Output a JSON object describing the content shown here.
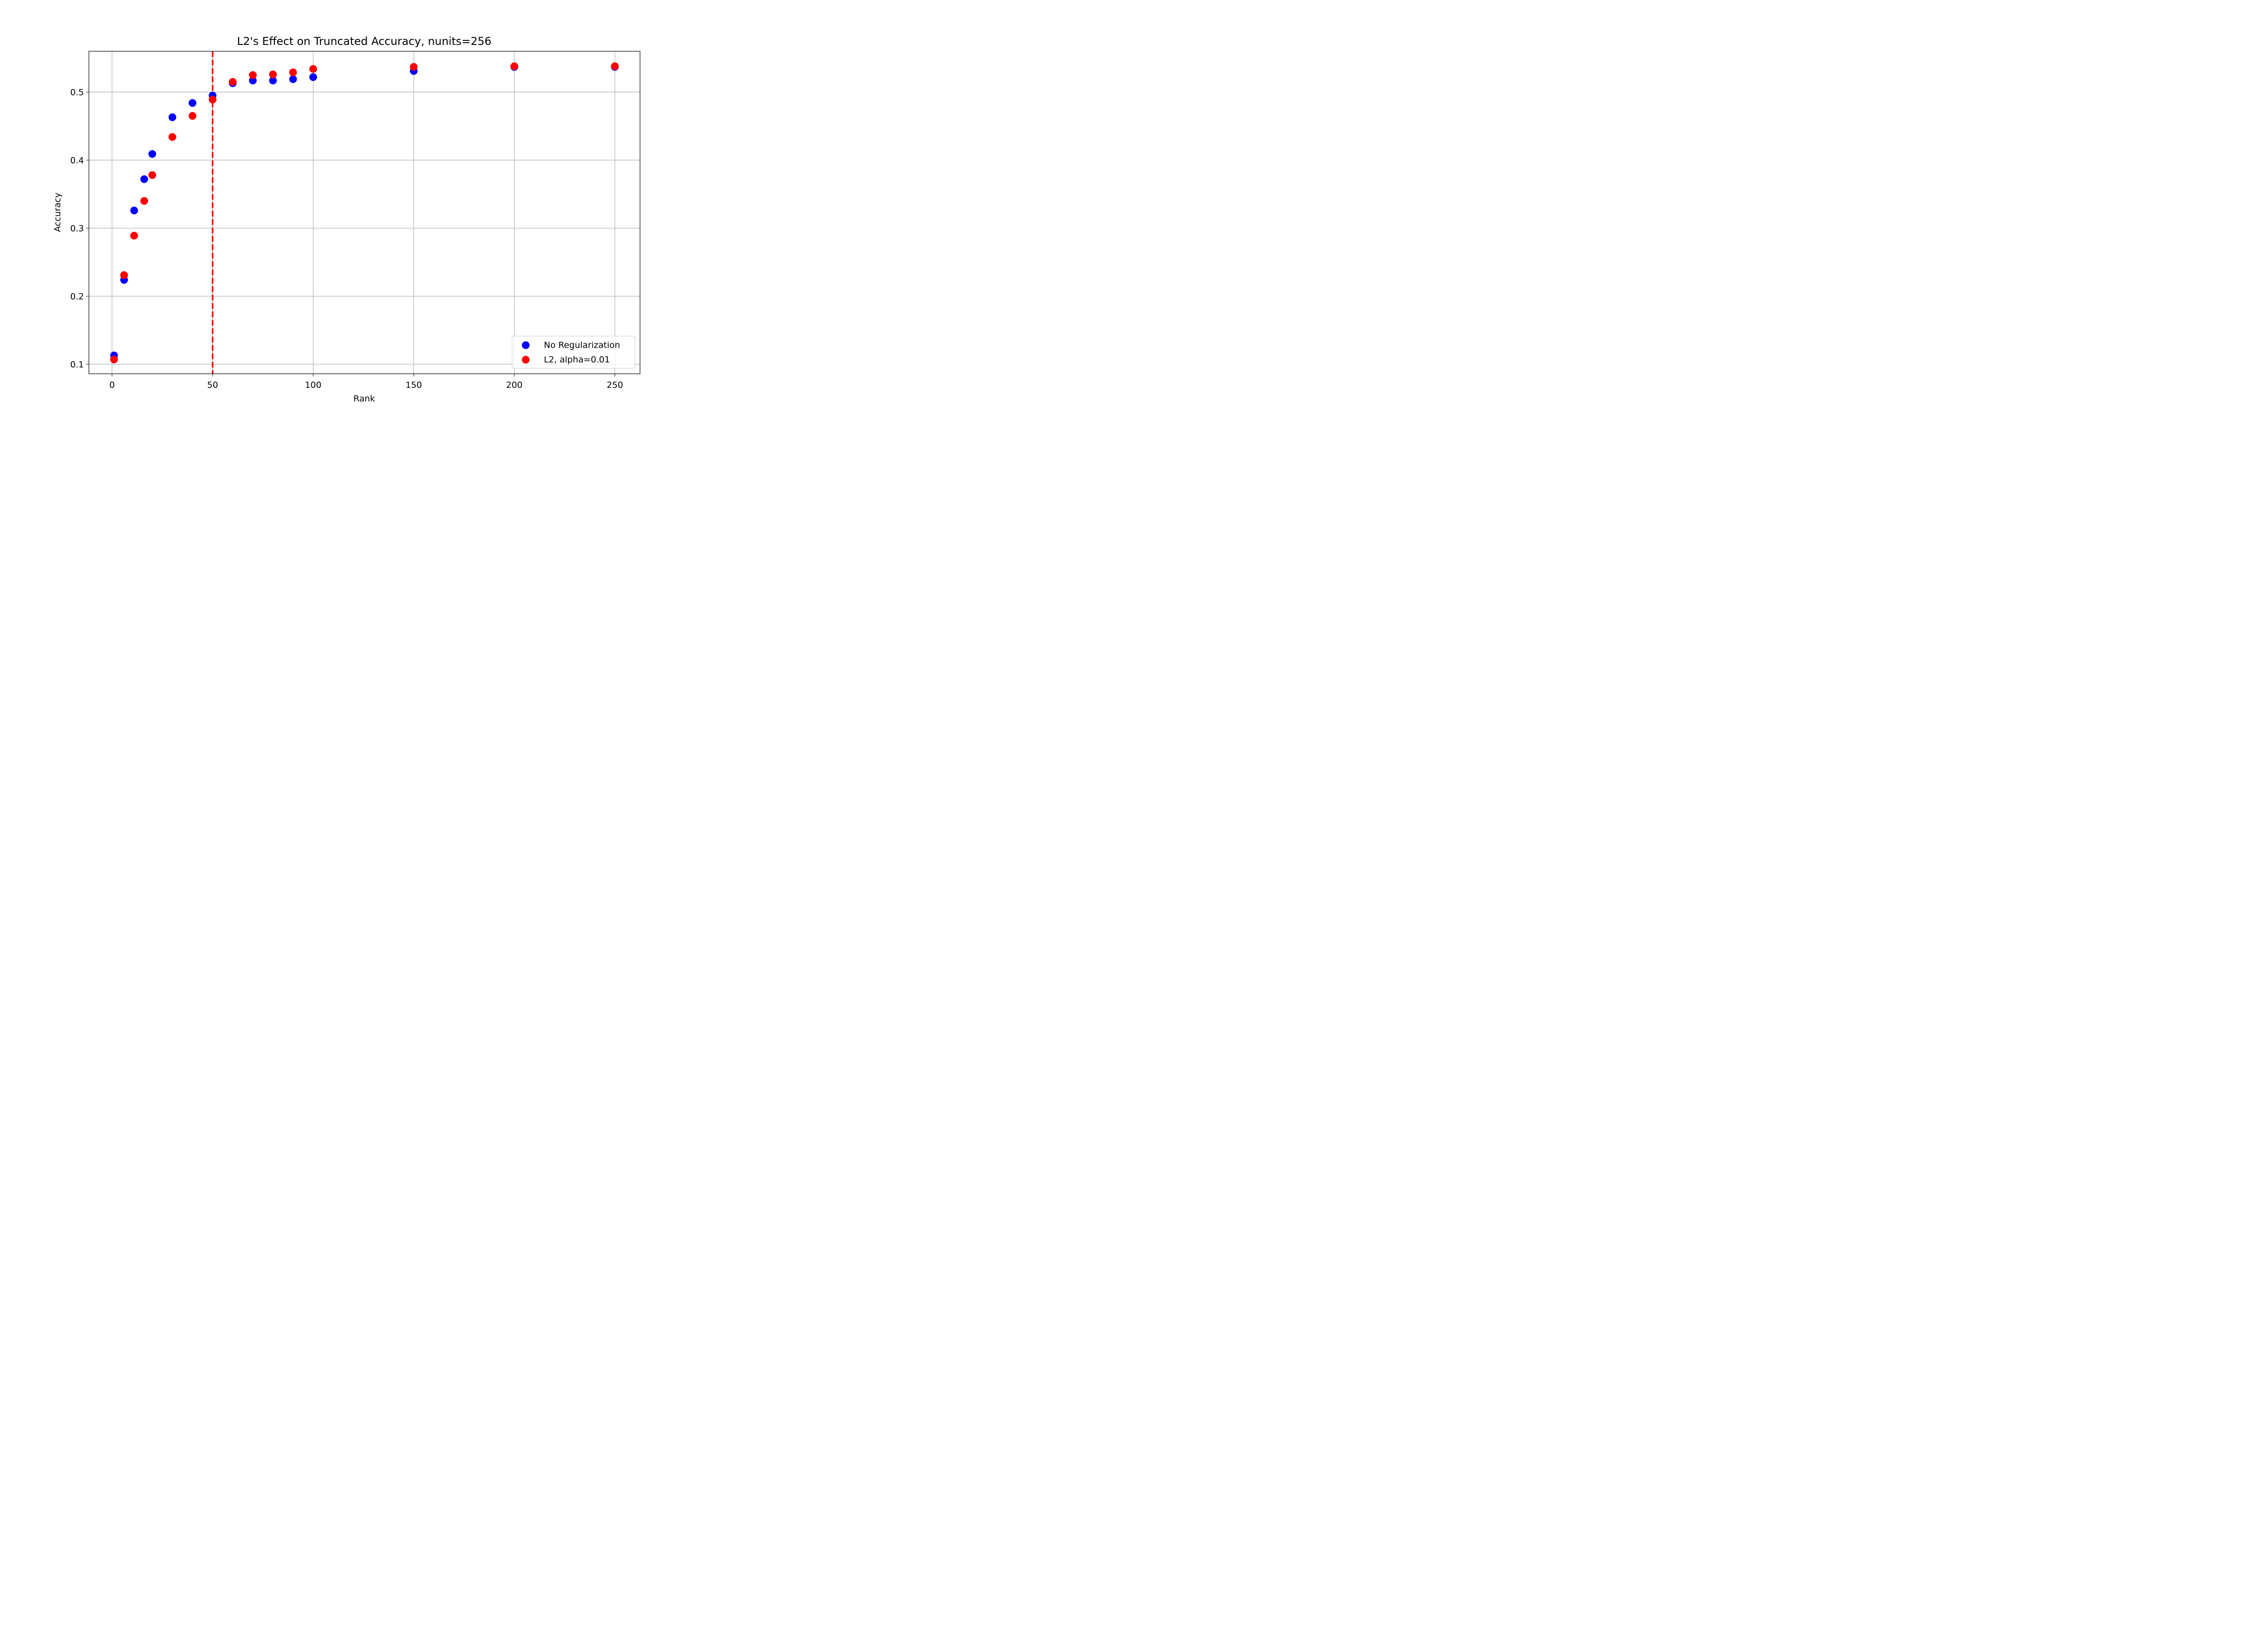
{
  "chart_data": {
    "type": "scatter",
    "title": "L2's Effect on Truncated Accuracy, nunits=256",
    "xlabel": "Rank",
    "ylabel": "Accuracy",
    "xlim": [
      -11.5,
      262.5
    ],
    "ylim": [
      0.086,
      0.56
    ],
    "xticks": [
      0,
      50,
      100,
      150,
      200,
      250
    ],
    "yticks": [
      0.1,
      0.2,
      0.3,
      0.4,
      0.5
    ],
    "xtick_labels": [
      "0",
      "50",
      "100",
      "150",
      "200",
      "250"
    ],
    "ytick_labels": [
      "0.1",
      "0.2",
      "0.3",
      "0.4",
      "0.5"
    ],
    "grid": true,
    "legend_position": "lower-right",
    "vline": {
      "x": 50,
      "color": "#ff0000",
      "style": "dashed"
    },
    "series": [
      {
        "name": "No Regularization",
        "color": "#0000ff",
        "points": [
          [
            1,
            0.113
          ],
          [
            6,
            0.224
          ],
          [
            11,
            0.326
          ],
          [
            16,
            0.372
          ],
          [
            20,
            0.409
          ],
          [
            30,
            0.463
          ],
          [
            40,
            0.484
          ],
          [
            50,
            0.495
          ],
          [
            60,
            0.513
          ],
          [
            70,
            0.517
          ],
          [
            80,
            0.517
          ],
          [
            90,
            0.519
          ],
          [
            100,
            0.522
          ],
          [
            150,
            0.531
          ],
          [
            200,
            0.537
          ],
          [
            250,
            0.537
          ]
        ]
      },
      {
        "name": "L2, alpha=0.01",
        "color": "#ff0000",
        "points": [
          [
            1,
            0.107
          ],
          [
            6,
            0.231
          ],
          [
            11,
            0.289
          ],
          [
            16,
            0.34
          ],
          [
            20,
            0.378
          ],
          [
            30,
            0.434
          ],
          [
            40,
            0.465
          ],
          [
            50,
            0.489
          ],
          [
            60,
            0.515
          ],
          [
            70,
            0.525
          ],
          [
            80,
            0.526
          ],
          [
            90,
            0.529
          ],
          [
            100,
            0.534
          ],
          [
            150,
            0.537
          ],
          [
            200,
            0.538
          ],
          [
            250,
            0.538
          ]
        ]
      }
    ]
  }
}
